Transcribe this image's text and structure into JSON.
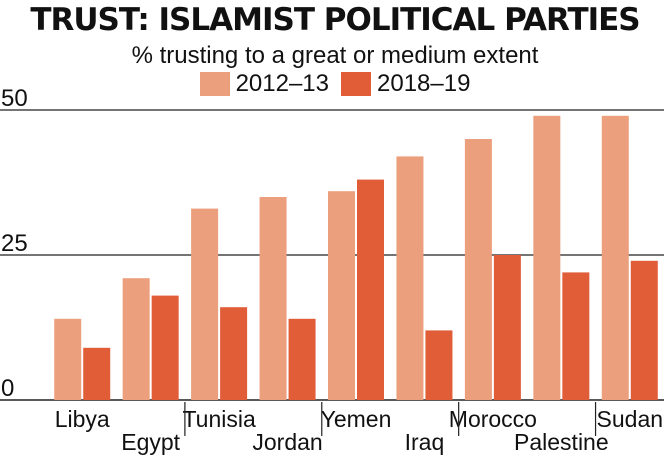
{
  "chart_data": {
    "type": "bar",
    "title": "TRUST: ISLAMIST POLITICAL PARTIES",
    "subtitle": "% trusting to a great or medium extent",
    "categories": [
      "Libya",
      "Egypt",
      "Tunisia",
      "Jordan",
      "Yemen",
      "Iraq",
      "Morocco",
      "Palestine",
      "Sudan"
    ],
    "series": [
      {
        "name": "2012–13",
        "color": "#eb9f7c",
        "values": [
          14,
          21,
          33,
          35,
          36,
          42,
          45,
          49,
          49
        ]
      },
      {
        "name": "2018–19",
        "color": "#e05d38",
        "values": [
          9,
          18,
          16,
          14,
          38,
          12,
          25,
          22,
          24
        ]
      }
    ],
    "yticks": [
      0,
      25,
      50
    ],
    "ylim": [
      0,
      50
    ],
    "grid": true,
    "legend_position": "top-center"
  }
}
